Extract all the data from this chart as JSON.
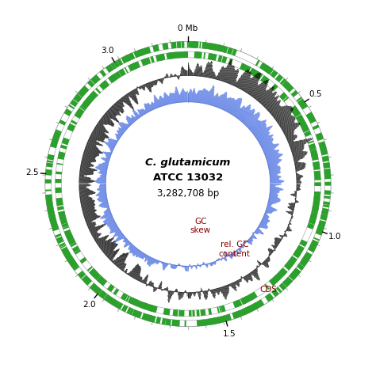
{
  "title_line1": "C. glutamicum",
  "title_line2": "ATCC 13032",
  "title_line3": "3,282,708 bp",
  "genome_size": 3282708,
  "background_color": "#ffffff",
  "tick_label_positions": [
    0.0,
    0.5,
    1.0,
    1.5,
    2.0,
    2.5,
    3.0
  ],
  "tick_label_texts": [
    "0 Mb",
    "0.5",
    "1.0",
    "1.5",
    "2.0",
    "2.5",
    "3.0"
  ],
  "cds_color": "#2ca02c",
  "gc_content_color": "#4169e1",
  "gc_skew_color": "#000000",
  "label_gc_skew": "GC\nskew",
  "label_gc_content": "rel. GC\ncontent",
  "label_cds": "CDS",
  "label_color": "#8b0000",
  "r_cds1_out": 0.92,
  "r_cds1_in": 0.88,
  "r_cds2_out": 0.855,
  "r_cds2_in": 0.815,
  "r_outer_tick": 0.93,
  "r_gc_skew_base": 0.7,
  "r_gc_skew_max": 0.155,
  "r_gc_cont_base": 0.53,
  "r_gc_cont_max": 0.13,
  "n_genes_outer": 320,
  "n_genes_inner": 290,
  "n_gc_points": 1000,
  "n_skew_points": 1000
}
